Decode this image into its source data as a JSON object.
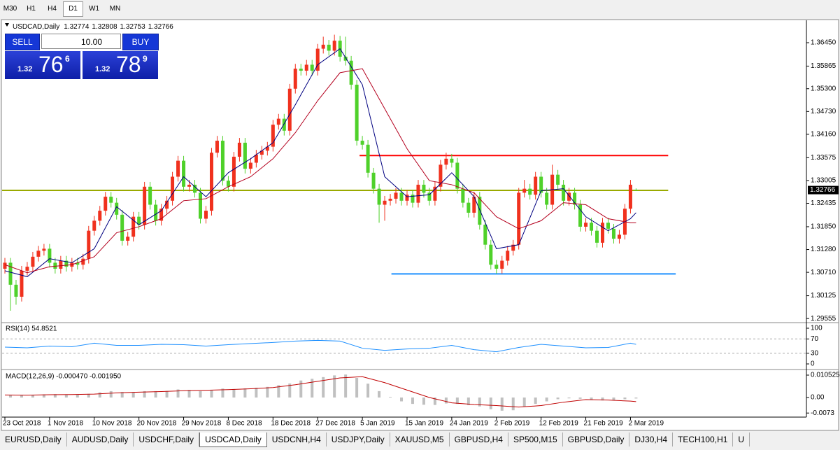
{
  "toolbar": {
    "timeframes": [
      "M30",
      "H1",
      "H4",
      "D1",
      "W1",
      "MN"
    ],
    "active": 3
  },
  "trade_panel": {
    "sell_label": "SELL",
    "lot": "10.00",
    "buy_label": "BUY",
    "bid": {
      "prefix": "1.32",
      "big": "76",
      "pip": "6"
    },
    "ask": {
      "prefix": "1.32",
      "big": "78",
      "pip": "9"
    }
  },
  "tabs": {
    "items": [
      "EURUSD,Daily",
      "AUDUSD,Daily",
      "USDCHF,Daily",
      "USDCAD,Daily",
      "USDCNH,H4",
      "USDJPY,Daily",
      "XAUUSD,M5",
      "GBPUSD,H4",
      "SP500,M15",
      "GBPUSD,Daily",
      "DJ30,H4",
      "TECH100,H1",
      "U"
    ],
    "active": 3
  },
  "chart_data": [
    {
      "type": "candlestick",
      "title": "USDCAD,Daily",
      "up_color": "#f0311e",
      "down_color": "#4fd12a",
      "xlim": [
        -0.5,
        143.5
      ],
      "xticks": [
        {
          "value": 0,
          "label": "23 Oct 2018"
        },
        {
          "value": 8,
          "label": "1 Nov 2018"
        },
        {
          "value": 16,
          "label": "10 Nov 2018"
        },
        {
          "value": 24,
          "label": "20 Nov 2018"
        },
        {
          "value": 32,
          "label": "29 Nov 2018"
        },
        {
          "value": 40,
          "label": "8 Dec 2018"
        },
        {
          "value": 48,
          "label": "18 Dec 2018"
        },
        {
          "value": 56,
          "label": "27 Dec 2018"
        },
        {
          "value": 64,
          "label": "5 Jan 2019"
        },
        {
          "value": 72,
          "label": "15 Jan 2019"
        },
        {
          "value": 80,
          "label": "24 Jan 2019"
        },
        {
          "value": 88,
          "label": "2 Feb 2019"
        },
        {
          "value": 96,
          "label": "12 Feb 2019"
        },
        {
          "value": 104,
          "label": "21 Feb 2019"
        },
        {
          "value": 112,
          "label": "2 Mar 2019"
        }
      ],
      "ylim": [
        1.2947,
        1.3701
      ],
      "yticks": [
        {
          "value": 1.3645,
          "label": "1.36450"
        },
        1.35865,
        {
          "value": 1.353,
          "label": "1.35300"
        },
        {
          "value": 1.3473,
          "label": "1.34730"
        },
        {
          "value": 1.3416,
          "label": "1.34160"
        },
        1.33575,
        1.33005,
        1.32435,
        {
          "value": 1.3185,
          "label": "1.31850"
        },
        {
          "value": 1.3128,
          "label": "1.31280"
        },
        {
          "value": 1.3071,
          "label": "1.30710"
        },
        1.30125,
        1.29555
      ],
      "open": [
        1.308,
        1.3095,
        1.304,
        1.301,
        1.3075,
        1.3085,
        1.311,
        1.3125,
        1.313,
        1.3095,
        1.308,
        1.31,
        1.3085,
        1.3095,
        1.309,
        1.3105,
        1.3175,
        1.32,
        1.3225,
        1.326,
        1.3245,
        1.3215,
        1.315,
        1.316,
        1.321,
        1.319,
        1.3285,
        1.324,
        1.32,
        1.323,
        1.325,
        1.331,
        1.335,
        1.3285,
        1.329,
        1.327,
        1.3205,
        1.3225,
        1.337,
        1.34,
        1.33,
        1.3285,
        1.336,
        1.3395,
        1.333,
        1.3345,
        1.3365,
        1.3375,
        1.3385,
        1.344,
        1.3455,
        1.3425,
        1.353,
        1.358,
        1.3575,
        1.359,
        1.3575,
        1.363,
        1.364,
        1.3625,
        1.365,
        1.361,
        1.36,
        1.354,
        1.34,
        1.339,
        1.332,
        1.328,
        1.324,
        1.325,
        1.3255,
        1.327,
        1.325,
        1.3265,
        1.3245,
        1.329,
        1.327,
        1.325,
        1.3285,
        1.334,
        1.3355,
        1.3345,
        1.328,
        1.3245,
        1.322,
        1.326,
        1.319,
        1.314,
        1.309,
        1.308,
        1.31,
        1.3125,
        1.314,
        1.327,
        1.328,
        1.3265,
        1.331,
        1.327,
        1.324,
        1.3315,
        1.329,
        1.325,
        1.327,
        1.324,
        1.3185,
        1.3195,
        1.3175,
        1.3145,
        1.3195,
        1.318,
        1.3155,
        1.3165,
        1.323,
        1.32774
      ],
      "high": [
        1.3107,
        1.3107,
        1.3052,
        1.3087,
        1.3097,
        1.3122,
        1.3137,
        1.3142,
        1.3142,
        1.3107,
        1.3112,
        1.3112,
        1.3107,
        1.3107,
        1.3117,
        1.3187,
        1.3212,
        1.3237,
        1.3272,
        1.3272,
        1.3257,
        1.3227,
        1.3172,
        1.3222,
        1.3222,
        1.3297,
        1.3297,
        1.3252,
        1.3242,
        1.3262,
        1.3322,
        1.3362,
        1.3362,
        1.3302,
        1.3302,
        1.3282,
        1.3237,
        1.3382,
        1.3412,
        1.3412,
        1.3312,
        1.3372,
        1.3407,
        1.3407,
        1.3357,
        1.3377,
        1.3387,
        1.3397,
        1.3452,
        1.3467,
        1.3467,
        1.3542,
        1.3592,
        1.3592,
        1.3602,
        1.3602,
        1.3642,
        1.366,
        1.3652,
        1.3665,
        1.3662,
        1.366,
        1.3612,
        1.3552,
        1.3412,
        1.3402,
        1.3332,
        1.3292,
        1.3262,
        1.3267,
        1.3282,
        1.3282,
        1.3277,
        1.3277,
        1.3302,
        1.3302,
        1.3282,
        1.3297,
        1.3352,
        1.337,
        1.3367,
        1.3357,
        1.3292,
        1.3257,
        1.3272,
        1.3272,
        1.3202,
        1.3152,
        1.3102,
        1.3112,
        1.3137,
        1.3152,
        1.3282,
        1.3302,
        1.3292,
        1.3322,
        1.3322,
        1.3282,
        1.334,
        1.3327,
        1.3302,
        1.3282,
        1.3282,
        1.3252,
        1.3207,
        1.3207,
        1.3187,
        1.3207,
        1.3207,
        1.3192,
        1.3177,
        1.3242,
        1.3302,
        1.32808
      ],
      "low": [
        1.3068,
        1.2975,
        1.299,
        1.2998,
        1.3063,
        1.3073,
        1.3098,
        1.3113,
        1.3083,
        1.3068,
        1.3068,
        1.3073,
        1.3073,
        1.3078,
        1.3078,
        1.3093,
        1.3163,
        1.3188,
        1.3213,
        1.3233,
        1.3203,
        1.3138,
        1.3138,
        1.3148,
        1.3178,
        1.3178,
        1.3228,
        1.3188,
        1.3188,
        1.3218,
        1.3238,
        1.3298,
        1.3273,
        1.3273,
        1.3258,
        1.3193,
        1.3193,
        1.3213,
        1.3358,
        1.3288,
        1.3273,
        1.3273,
        1.3348,
        1.3318,
        1.3318,
        1.3333,
        1.3353,
        1.3363,
        1.3373,
        1.3428,
        1.3413,
        1.3413,
        1.3518,
        1.3563,
        1.3563,
        1.3563,
        1.3563,
        1.3618,
        1.3613,
        1.3613,
        1.3598,
        1.3588,
        1.3528,
        1.3388,
        1.3378,
        1.3308,
        1.3268,
        1.3195,
        1.32,
        1.3238,
        1.3243,
        1.3238,
        1.3238,
        1.3233,
        1.3233,
        1.3258,
        1.3238,
        1.3238,
        1.3273,
        1.3328,
        1.3333,
        1.3268,
        1.3233,
        1.3208,
        1.3208,
        1.3178,
        1.3128,
        1.3078,
        1.3068,
        1.3068,
        1.3088,
        1.3113,
        1.3128,
        1.3258,
        1.3253,
        1.3253,
        1.3258,
        1.3228,
        1.3228,
        1.3278,
        1.3238,
        1.3238,
        1.3228,
        1.3173,
        1.3173,
        1.3163,
        1.3133,
        1.3133,
        1.3168,
        1.3143,
        1.3143,
        1.3153,
        1.3218,
        1.32753
      ],
      "close": [
        1.3095,
        1.304,
        1.301,
        1.3075,
        1.3085,
        1.311,
        1.3125,
        1.313,
        1.3095,
        1.308,
        1.31,
        1.3085,
        1.3095,
        1.309,
        1.3105,
        1.3175,
        1.32,
        1.3225,
        1.326,
        1.3245,
        1.3215,
        1.315,
        1.316,
        1.321,
        1.319,
        1.3285,
        1.324,
        1.32,
        1.323,
        1.325,
        1.331,
        1.335,
        1.3285,
        1.329,
        1.327,
        1.3205,
        1.3225,
        1.337,
        1.34,
        1.33,
        1.3285,
        1.336,
        1.3395,
        1.333,
        1.3345,
        1.3365,
        1.3375,
        1.3385,
        1.344,
        1.3455,
        1.3425,
        1.353,
        1.358,
        1.3575,
        1.359,
        1.3575,
        1.363,
        1.364,
        1.3625,
        1.365,
        1.361,
        1.36,
        1.354,
        1.34,
        1.339,
        1.332,
        1.328,
        1.324,
        1.325,
        1.3255,
        1.327,
        1.325,
        1.3265,
        1.3245,
        1.329,
        1.327,
        1.325,
        1.3285,
        1.334,
        1.3355,
        1.3345,
        1.328,
        1.3245,
        1.322,
        1.326,
        1.319,
        1.314,
        1.309,
        1.308,
        1.31,
        1.3125,
        1.314,
        1.327,
        1.328,
        1.3265,
        1.331,
        1.327,
        1.324,
        1.3315,
        1.329,
        1.325,
        1.327,
        1.324,
        1.3185,
        1.3195,
        1.3175,
        1.3145,
        1.3195,
        1.318,
        1.3155,
        1.3165,
        1.323,
        1.329,
        1.32766
      ],
      "lines": [
        {
          "color": "#000080",
          "x": [
            0,
            4,
            8,
            12,
            16,
            20,
            24,
            28,
            32,
            36,
            40,
            44,
            48,
            52,
            56,
            60,
            64,
            68,
            72,
            76,
            80,
            84,
            88,
            92,
            96,
            100,
            104,
            108,
            112,
            113
          ],
          "values": [
            1.3075,
            1.306,
            1.3105,
            1.3095,
            1.313,
            1.3235,
            1.319,
            1.3225,
            1.331,
            1.326,
            1.332,
            1.3355,
            1.3395,
            1.349,
            1.359,
            1.363,
            1.354,
            1.331,
            1.326,
            1.3265,
            1.332,
            1.326,
            1.313,
            1.314,
            1.3275,
            1.328,
            1.321,
            1.3175,
            1.3205,
            1.322
          ]
        },
        {
          "color": "#b4001e",
          "x": [
            0,
            4,
            8,
            12,
            16,
            20,
            24,
            28,
            32,
            36,
            40,
            44,
            48,
            52,
            56,
            60,
            64,
            68,
            72,
            76,
            80,
            84,
            88,
            92,
            96,
            100,
            104,
            108,
            112,
            113
          ],
          "values": [
            1.309,
            1.307,
            1.3085,
            1.309,
            1.311,
            1.317,
            1.3185,
            1.3205,
            1.325,
            1.3255,
            1.3285,
            1.331,
            1.3355,
            1.342,
            1.35,
            1.357,
            1.358,
            1.348,
            1.338,
            1.33,
            1.329,
            1.327,
            1.321,
            1.318,
            1.32,
            1.3245,
            1.324,
            1.3205,
            1.3195,
            1.3195
          ]
        }
      ],
      "hlines": [
        {
          "value": 1.3363,
          "color": "#ff0000",
          "from": 63.5,
          "to": 118.75
        },
        {
          "value": 1.3276,
          "color": "#9aaa00",
          "from": -0.5,
          "to": 118.75
        },
        {
          "value": 1.3067,
          "color": "#1e90ff",
          "from": 69.2,
          "to": 120.1
        }
      ]
    },
    {
      "type": "line",
      "title": "RSI(14) 54.8521",
      "ylim": [
        -13.7,
        113.7
      ],
      "yticks": [
        100,
        70,
        30,
        0
      ],
      "levels": [
        70,
        30
      ],
      "series": [
        {
          "color": "#1e90ff",
          "x": [
            0,
            4,
            8,
            12,
            16,
            20,
            24,
            28,
            32,
            36,
            40,
            44,
            48,
            52,
            56,
            60,
            64,
            68,
            72,
            76,
            80,
            84,
            88,
            92,
            96,
            100,
            104,
            108,
            112,
            113
          ],
          "values": [
            47,
            45,
            50,
            48,
            58,
            52,
            52,
            55,
            54,
            50,
            54,
            57,
            60,
            64,
            66,
            64,
            44,
            38,
            42,
            44,
            52,
            40,
            34,
            46,
            55,
            50,
            45,
            46,
            58,
            54.8521
          ]
        }
      ]
    },
    {
      "type": "macd",
      "title": "MACD(12,26,9) -0.000470 -0.001950",
      "ylim": [
        -0.00888,
        0.01283
      ],
      "yticks": [
        0.010525,
        {
          "value": 0,
          "label": "0.00"
        },
        -0.0073
      ],
      "histogram": {
        "color": "#c0c0c0",
        "x": [
          1,
          3,
          5,
          7,
          9,
          11,
          13,
          15,
          17,
          19,
          21,
          23,
          25,
          27,
          29,
          31,
          33,
          35,
          37,
          39,
          41,
          43,
          45,
          47,
          49,
          51,
          53,
          55,
          57,
          59,
          61,
          63,
          65,
          67,
          69,
          71,
          73,
          75,
          77,
          79,
          81,
          83,
          85,
          87,
          89,
          91,
          93,
          95,
          97,
          99,
          101,
          103,
          105,
          107,
          109,
          111,
          113
        ],
        "values": [
          0.0012,
          0.001,
          0.0011,
          0.0015,
          0.0016,
          0.0014,
          0.0013,
          0.0017,
          0.0024,
          0.003,
          0.0026,
          0.0024,
          0.003,
          0.003,
          0.0031,
          0.0038,
          0.0036,
          0.003,
          0.0036,
          0.0042,
          0.004,
          0.0043,
          0.0046,
          0.005,
          0.0058,
          0.0066,
          0.008,
          0.0088,
          0.0096,
          0.0104,
          0.0108,
          0.0092,
          0.0065,
          0.003,
          0.0003,
          -0.0018,
          -0.003,
          -0.0034,
          -0.0035,
          -0.0028,
          -0.003,
          -0.0036,
          -0.0042,
          -0.0055,
          -0.0062,
          -0.006,
          -0.0042,
          -0.003,
          -0.0018,
          -0.0008,
          -0.0004,
          -0.0006,
          -0.0012,
          -0.0014,
          -0.0013,
          -0.0008,
          -0.00047
        ]
      },
      "signal": {
        "color": "#c00000",
        "x": [
          0,
          4,
          8,
          12,
          16,
          20,
          24,
          28,
          32,
          36,
          40,
          44,
          48,
          52,
          56,
          60,
          64,
          68,
          72,
          76,
          80,
          84,
          88,
          92,
          96,
          100,
          104,
          108,
          112,
          113
        ],
        "values": [
          0.0012,
          0.0011,
          0.0013,
          0.0014,
          0.0016,
          0.0022,
          0.0025,
          0.0028,
          0.0032,
          0.0034,
          0.0037,
          0.0041,
          0.0047,
          0.006,
          0.0076,
          0.0092,
          0.0098,
          0.007,
          0.0035,
          0.0,
          -0.0025,
          -0.0033,
          -0.0038,
          -0.0045,
          -0.0038,
          -0.0022,
          -0.001,
          -0.0012,
          -0.0017,
          -0.00195
        ]
      }
    }
  ]
}
